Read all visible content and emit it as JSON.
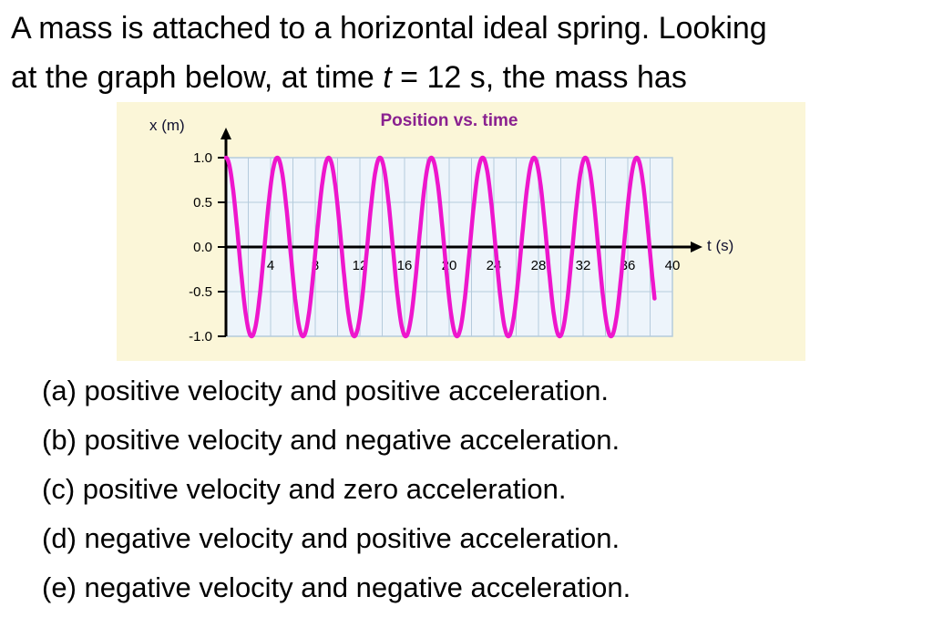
{
  "question": {
    "line1": "A mass is attached to a horizontal ideal spring. Looking",
    "line2_pre": "at the graph below, at time ",
    "line2_var": "t",
    "line2_post": " = 12 s, the mass has"
  },
  "chart_data": {
    "type": "line",
    "title": "Position vs. time",
    "xlabel": "t (s)",
    "ylabel": "x (m)",
    "xlim": [
      0,
      40
    ],
    "ylim": [
      -1.0,
      1.0
    ],
    "x_ticks": [
      4,
      8,
      12,
      16,
      20,
      24,
      28,
      32,
      36,
      40
    ],
    "y_ticks": [
      1.0,
      0.5,
      0.0,
      -0.5,
      -1.0
    ],
    "grid": {
      "on": true,
      "x_step": 2,
      "y_step": 0.5
    },
    "legend": "none",
    "series": [
      {
        "name": "position x(t)",
        "shape": "sinusoid",
        "function": "x(t) = 1.0 * cos(2*pi*t/T), max at t = 0",
        "amplitude_m": 1.0,
        "period_s": 4.6,
        "t_start": 0,
        "t_end": 38.4,
        "color": "#ee16cc"
      }
    ],
    "colors": {
      "panel_bg": "#fbf6d8",
      "plot_bg": "#edf4fb",
      "grid_line": "#b5cbdc",
      "axis": "#000000",
      "tick_text": "#000000",
      "title": "#8a2190",
      "axis_label": "#121230"
    }
  },
  "options": [
    "(a) positive velocity and positive acceleration.",
    "(b) positive velocity and negative acceleration.",
    "(c) positive velocity and zero acceleration.",
    "(d) negative velocity and positive acceleration.",
    "(e) negative velocity and negative acceleration."
  ]
}
